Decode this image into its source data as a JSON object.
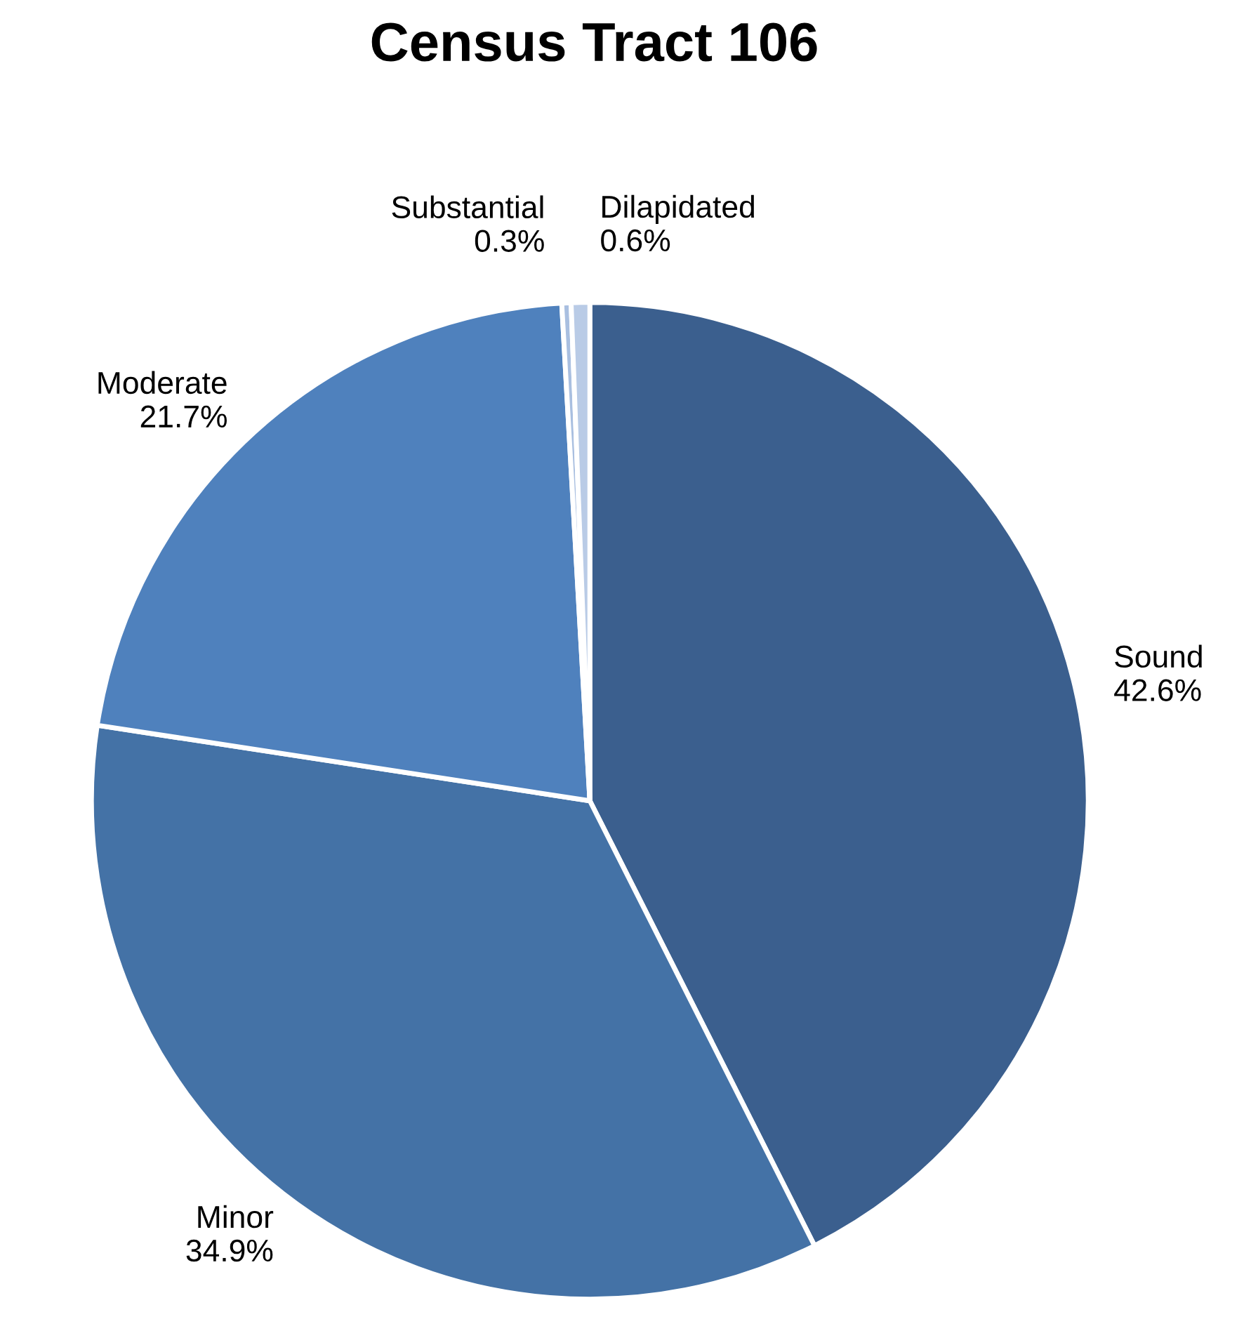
{
  "chart_data": {
    "type": "pie",
    "title": "Census Tract 106",
    "categories": [
      "Sound",
      "Minor",
      "Moderate",
      "Substantial",
      "Dilapidated"
    ],
    "values": [
      42.6,
      34.9,
      21.7,
      0.3,
      0.6
    ],
    "value_labels": [
      "42.6%",
      "34.9%",
      "21.7%",
      "0.3%",
      "0.6%"
    ],
    "colors": [
      "#3b5f8e",
      "#4472a6",
      "#4f81bd",
      "#a9bfe0",
      "#b9cbe6"
    ],
    "legend": false
  }
}
